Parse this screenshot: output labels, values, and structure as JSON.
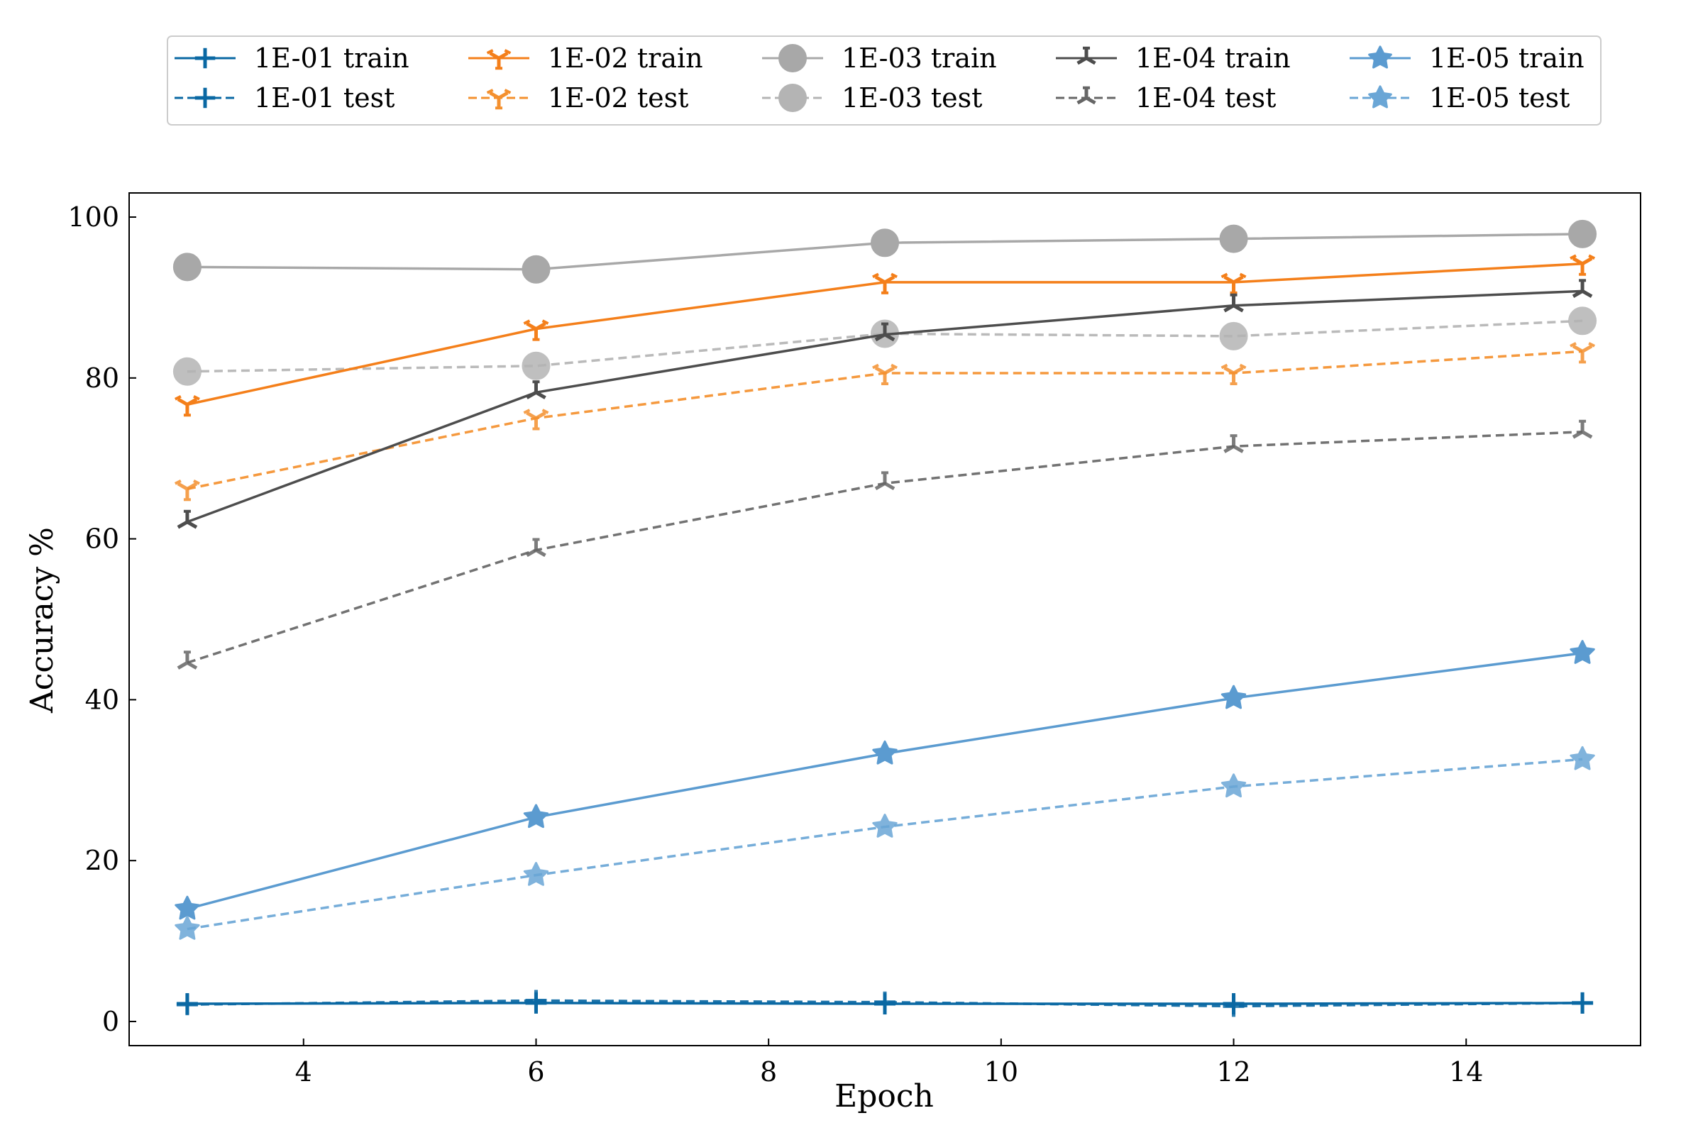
{
  "chart_data": {
    "type": "line",
    "title": "",
    "xlabel": "Epoch",
    "ylabel": "Accuracy %",
    "xlim": [
      2.5,
      15.5
    ],
    "ylim": [
      -3,
      103
    ],
    "xticks": [
      4,
      6,
      8,
      10,
      12,
      14
    ],
    "yticks": [
      0,
      20,
      40,
      60,
      80,
      100
    ],
    "grid": false,
    "legend_position": "top-center",
    "x": [
      3,
      6,
      9,
      12,
      15
    ],
    "series": [
      {
        "name": "1E-01 train",
        "color": "#0a68a3",
        "dash": "solid",
        "marker": "plus",
        "values": [
          2.2,
          2.3,
          2.2,
          2.2,
          2.3
        ]
      },
      {
        "name": "1E-01 test",
        "color": "#0a68a3",
        "dash": "dashed",
        "marker": "plus",
        "values": [
          2.1,
          2.6,
          2.4,
          1.9,
          2.3
        ]
      },
      {
        "name": "1E-02 train",
        "color": "#f47f1a",
        "dash": "solid",
        "marker": "tri",
        "values": [
          76.7,
          86.1,
          91.9,
          91.9,
          94.2
        ]
      },
      {
        "name": "1E-02 test",
        "color": "#f4902e",
        "dash": "dashed",
        "marker": "tri",
        "values": [
          66.2,
          75.0,
          80.6,
          80.6,
          83.3
        ]
      },
      {
        "name": "1E-03 train",
        "color": "#a8a8a8",
        "dash": "solid",
        "marker": "circle",
        "values": [
          93.8,
          93.5,
          96.8,
          97.3,
          97.9
        ]
      },
      {
        "name": "1E-03 test",
        "color": "#b4b4b4",
        "dash": "dashed",
        "marker": "circle",
        "values": [
          80.8,
          81.5,
          85.5,
          85.2,
          87.1
        ]
      },
      {
        "name": "1E-04 train",
        "color": "#4d4d4d",
        "dash": "solid",
        "marker": "tri-down",
        "values": [
          62.1,
          78.2,
          85.4,
          89.0,
          90.8
        ]
      },
      {
        "name": "1E-04 test",
        "color": "#666666",
        "dash": "dashed",
        "marker": "tri-down",
        "values": [
          44.6,
          58.6,
          66.9,
          71.5,
          73.3
        ]
      },
      {
        "name": "1E-05 train",
        "color": "#5b9bd0",
        "dash": "solid",
        "marker": "star",
        "values": [
          14.0,
          25.4,
          33.3,
          40.2,
          45.8
        ]
      },
      {
        "name": "1E-05 test",
        "color": "#6aa6d6",
        "dash": "dashed",
        "marker": "star",
        "values": [
          11.5,
          18.2,
          24.2,
          29.2,
          32.6
        ]
      }
    ]
  }
}
